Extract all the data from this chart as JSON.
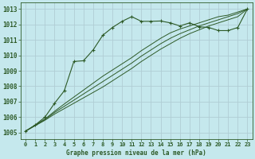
{
  "title": "Graphe pression niveau de la mer (hPa)",
  "bg_color": "#c5e8ed",
  "grid_color": "#b0cdd4",
  "line_color": "#2d5a27",
  "xlim": [
    -0.5,
    23.5
  ],
  "ylim": [
    1004.6,
    1013.4
  ],
  "yticks": [
    1005,
    1006,
    1007,
    1008,
    1009,
    1010,
    1011,
    1012,
    1013
  ],
  "xticks": [
    0,
    1,
    2,
    3,
    4,
    5,
    6,
    7,
    8,
    9,
    10,
    11,
    12,
    13,
    14,
    15,
    16,
    17,
    18,
    19,
    20,
    21,
    22,
    23
  ],
  "series_zigzag_x": [
    0,
    1,
    2,
    3,
    4,
    5,
    6,
    7,
    8,
    9,
    10,
    11,
    12,
    13,
    14,
    15,
    16,
    17,
    18,
    19,
    20,
    21,
    22,
    23
  ],
  "series_zigzag_y": [
    1005.1,
    1005.5,
    1006.0,
    1006.9,
    1007.7,
    1009.6,
    1009.65,
    1010.35,
    1011.3,
    1011.8,
    1012.2,
    1012.5,
    1012.2,
    1012.2,
    1012.22,
    1012.1,
    1011.9,
    1012.1,
    1011.85,
    1011.8,
    1011.6,
    1011.6,
    1011.8,
    1013.0
  ],
  "series_lin1_x": [
    0,
    1,
    2,
    3,
    4,
    5,
    6,
    7,
    8,
    9,
    10,
    11,
    12,
    13,
    14,
    15,
    16,
    17,
    18,
    19,
    20,
    21,
    22,
    23
  ],
  "series_lin1_y": [
    1005.1,
    1005.45,
    1005.8,
    1006.2,
    1006.55,
    1006.9,
    1007.25,
    1007.6,
    1007.95,
    1008.35,
    1008.75,
    1009.15,
    1009.6,
    1010.0,
    1010.4,
    1010.75,
    1011.1,
    1011.4,
    1011.65,
    1011.9,
    1012.1,
    1012.3,
    1012.5,
    1013.0
  ],
  "series_lin2_x": [
    0,
    1,
    2,
    3,
    4,
    5,
    6,
    7,
    8,
    9,
    10,
    11,
    12,
    13,
    14,
    15,
    16,
    17,
    18,
    19,
    20,
    21,
    22,
    23
  ],
  "series_lin2_y": [
    1005.1,
    1005.47,
    1005.84,
    1006.3,
    1006.7,
    1007.1,
    1007.5,
    1007.9,
    1008.3,
    1008.7,
    1009.1,
    1009.5,
    1009.95,
    1010.35,
    1010.75,
    1011.1,
    1011.4,
    1011.65,
    1011.9,
    1012.1,
    1012.3,
    1012.5,
    1012.7,
    1013.0
  ],
  "series_lin3_x": [
    0,
    1,
    2,
    3,
    4,
    5,
    6,
    7,
    8,
    9,
    10,
    11,
    12,
    13,
    14,
    15,
    16,
    17,
    18,
    19,
    20,
    21,
    22,
    23
  ],
  "series_lin3_y": [
    1005.1,
    1005.49,
    1005.88,
    1006.38,
    1006.85,
    1007.3,
    1007.75,
    1008.2,
    1008.65,
    1009.05,
    1009.45,
    1009.85,
    1010.3,
    1010.7,
    1011.1,
    1011.45,
    1011.7,
    1011.9,
    1012.1,
    1012.3,
    1012.5,
    1012.6,
    1012.8,
    1013.0
  ]
}
